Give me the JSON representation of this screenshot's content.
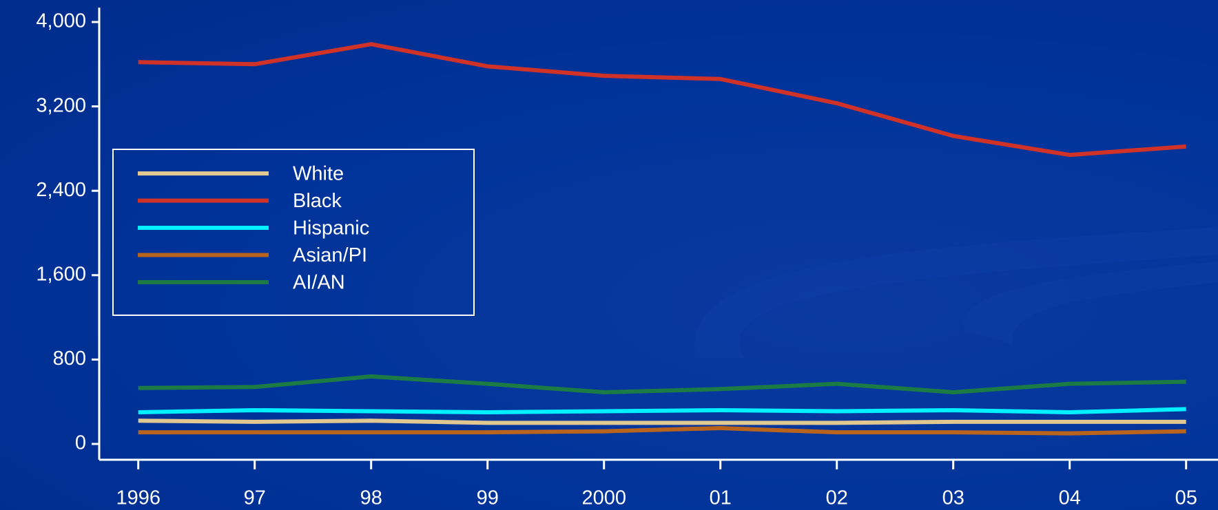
{
  "chart_data": {
    "type": "line",
    "categories": [
      "1996",
      "97",
      "98",
      "99",
      "2000",
      "01",
      "02",
      "03",
      "04",
      "05"
    ],
    "series": [
      {
        "name": "White",
        "color": "#e0c890",
        "values": [
          220,
          210,
          220,
          200,
          200,
          200,
          200,
          210,
          210,
          210
        ]
      },
      {
        "name": "Black",
        "color": "#d03228",
        "values": [
          3620,
          3600,
          3790,
          3580,
          3490,
          3460,
          3230,
          2920,
          2740,
          2820
        ]
      },
      {
        "name": "Hispanic",
        "color": "#00f0ff",
        "values": [
          300,
          320,
          310,
          300,
          310,
          320,
          310,
          320,
          300,
          330
        ]
      },
      {
        "name": "Asian/PI",
        "color": "#b8641c",
        "values": [
          110,
          110,
          110,
          110,
          120,
          150,
          110,
          110,
          100,
          120
        ]
      },
      {
        "name": "AI/AN",
        "color": "#1c7a44",
        "values": [
          530,
          540,
          640,
          570,
          490,
          520,
          570,
          490,
          570,
          590
        ]
      }
    ],
    "ylim": [
      0,
      4000
    ],
    "yticks": [
      0,
      {
        "value": 800,
        "label": "800"
      },
      {
        "value": 1600,
        "label": "1,600"
      },
      {
        "value": 2400,
        "label": "2,400"
      },
      {
        "value": 3200,
        "label": "3,200"
      },
      {
        "value": 4000,
        "label": "4,000"
      }
    ],
    "grid": false
  }
}
